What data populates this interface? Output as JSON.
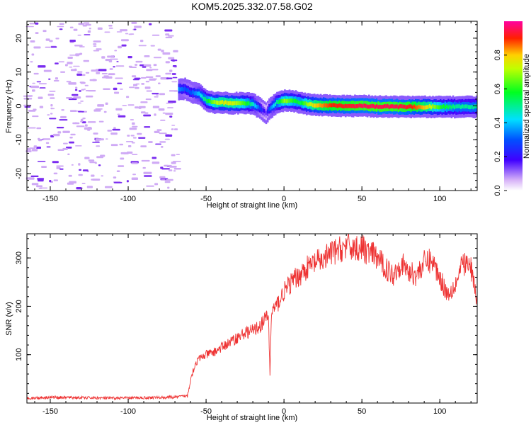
{
  "title": "KOM5.2025.332.07.58.G02",
  "chart_data": [
    {
      "type": "heatmap",
      "name": "spectrogram",
      "xlabel": "Height of straight line (km)",
      "ylabel": "Frequency (Hz)",
      "xlim": [
        -165,
        124
      ],
      "ylim": [
        -25,
        25
      ],
      "x_ticks": [
        -150,
        -100,
        -50,
        0,
        50,
        100
      ],
      "x_tick_labels": [
        "-150",
        "-100",
        "-50",
        "0",
        "50",
        "100"
      ],
      "y_ticks": [
        -20,
        -10,
        0,
        10,
        20
      ],
      "y_tick_labels": [
        "-20",
        "-10",
        "0",
        "10",
        "20"
      ],
      "ridge": {
        "x": [
          -68,
          -64,
          -60,
          -55,
          -50,
          -45,
          -40,
          -35,
          -30,
          -25,
          -20,
          -15,
          -12,
          -10,
          -5,
          0,
          5,
          10,
          15,
          20,
          30,
          40,
          50,
          60,
          70,
          80,
          90,
          100,
          110,
          124
        ],
        "freq": [
          5,
          5,
          4,
          3.5,
          1.5,
          1,
          1,
          0.8,
          0.8,
          0.8,
          0.5,
          -1,
          -2,
          -1,
          1,
          1.5,
          1.5,
          1,
          0.5,
          0.2,
          0.1,
          0,
          0,
          -0.2,
          -0.2,
          -0.3,
          -0.3,
          -0.3,
          -0.3,
          -0.3
        ],
        "amplitude": [
          0.35,
          0.3,
          0.3,
          0.4,
          0.55,
          0.7,
          0.75,
          0.75,
          0.7,
          0.6,
          0.45,
          0.25,
          0.15,
          0.3,
          0.5,
          0.7,
          0.6,
          0.55,
          0.7,
          0.8,
          0.9,
          0.92,
          0.95,
          0.95,
          0.95,
          0.92,
          0.8,
          0.6,
          0.5,
          0.5
        ]
      },
      "noise_region_x": [
        -165,
        -68
      ],
      "colorbar": {
        "label": "Normalized spectral amplitude",
        "range": [
          0,
          1
        ],
        "ticks": [
          0,
          0.2,
          0.4,
          0.6,
          0.8
        ],
        "tick_labels": [
          "0.0",
          "0.2",
          "0.4",
          "0.6",
          "0.8"
        ]
      }
    },
    {
      "type": "line",
      "name": "snr",
      "xlabel": "Height of straight line (km)",
      "ylabel": "SNR (v/v)",
      "xlim": [
        -165,
        124
      ],
      "ylim": [
        0,
        350
      ],
      "x_ticks": [
        -150,
        -100,
        -50,
        0,
        50,
        100
      ],
      "x_tick_labels": [
        "-150",
        "-100",
        "-50",
        "0",
        "50",
        "100"
      ],
      "y_ticks": [
        100,
        200,
        300
      ],
      "y_tick_labels": [
        "100",
        "200",
        "300"
      ],
      "color": "#ee3333",
      "series": [
        {
          "name": "SNR",
          "x": [
            -165,
            -150,
            -130,
            -110,
            -90,
            -70,
            -62,
            -60,
            -57,
            -55,
            -50,
            -45,
            -40,
            -35,
            -30,
            -25,
            -20,
            -15,
            -12,
            -10,
            -9,
            -8,
            -5,
            0,
            5,
            10,
            15,
            20,
            25,
            30,
            35,
            40,
            45,
            50,
            55,
            60,
            65,
            70,
            75,
            80,
            85,
            90,
            95,
            100,
            105,
            110,
            115,
            120,
            124
          ],
          "y": [
            10,
            12,
            11,
            10,
            11,
            12,
            15,
            50,
            80,
            90,
            100,
            105,
            115,
            125,
            135,
            145,
            150,
            160,
            175,
            180,
            60,
            190,
            200,
            230,
            250,
            265,
            280,
            290,
            295,
            310,
            315,
            325,
            320,
            320,
            310,
            300,
            280,
            265,
            290,
            270,
            265,
            290,
            295,
            260,
            225,
            245,
            290,
            280,
            210
          ]
        }
      ]
    }
  ]
}
